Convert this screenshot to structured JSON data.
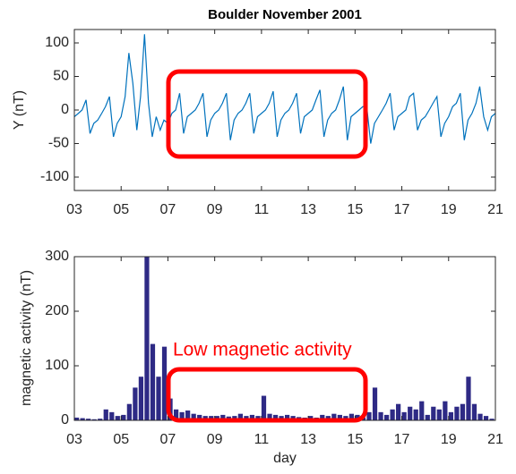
{
  "chart_data": [
    {
      "type": "line",
      "title": "Boulder    November 2001",
      "ylabel": "Y (nT)",
      "color": "#0072bd",
      "xlim": [
        3,
        21
      ],
      "ylim": [
        -120,
        120
      ],
      "xticks": [
        {
          "value": 3,
          "label": "03"
        },
        {
          "value": 5,
          "label": "05"
        },
        {
          "value": 7,
          "label": "07"
        },
        {
          "value": 9,
          "label": "09"
        },
        {
          "value": 11,
          "label": "11"
        },
        {
          "value": 13,
          "label": "13"
        },
        {
          "value": 15,
          "label": "15"
        },
        {
          "value": 17,
          "label": "17"
        },
        {
          "value": 19,
          "label": "19"
        },
        {
          "value": 21,
          "label": "21"
        }
      ],
      "yticks": [
        -100,
        -50,
        0,
        50,
        100
      ],
      "x": [
        3,
        3.17,
        3.33,
        3.5,
        3.67,
        3.83,
        4,
        4.17,
        4.33,
        4.5,
        4.67,
        4.83,
        5,
        5.17,
        5.33,
        5.5,
        5.67,
        5.83,
        6,
        6.17,
        6.33,
        6.5,
        6.67,
        6.83,
        7,
        7.17,
        7.33,
        7.5,
        7.67,
        7.83,
        8,
        8.17,
        8.33,
        8.5,
        8.67,
        8.83,
        9,
        9.17,
        9.33,
        9.5,
        9.67,
        9.83,
        10,
        10.17,
        10.33,
        10.5,
        10.67,
        10.83,
        11,
        11.17,
        11.33,
        11.5,
        11.67,
        11.83,
        12,
        12.17,
        12.33,
        12.5,
        12.67,
        12.83,
        13,
        13.17,
        13.33,
        13.5,
        13.67,
        13.83,
        14,
        14.17,
        14.33,
        14.5,
        14.67,
        14.83,
        15,
        15.17,
        15.33,
        15.5,
        15.67,
        15.83,
        16,
        16.17,
        16.33,
        16.5,
        16.67,
        16.83,
        17,
        17.17,
        17.33,
        17.5,
        17.67,
        17.83,
        18,
        18.17,
        18.33,
        18.5,
        18.67,
        18.83,
        19,
        19.17,
        19.33,
        19.5,
        19.67,
        19.83,
        20,
        20.17,
        20.33,
        20.5,
        20.67,
        20.83,
        21
      ],
      "values": [
        -10,
        -5,
        0,
        15,
        -35,
        -20,
        -15,
        -5,
        5,
        20,
        -40,
        -20,
        -10,
        20,
        85,
        40,
        -30,
        20,
        113,
        10,
        -40,
        -10,
        -30,
        -15,
        -20,
        -5,
        0,
        25,
        -35,
        -10,
        -5,
        0,
        10,
        25,
        -40,
        -15,
        -5,
        0,
        10,
        25,
        -45,
        -15,
        -5,
        0,
        10,
        25,
        -35,
        -10,
        -5,
        0,
        10,
        28,
        -40,
        -15,
        -5,
        0,
        10,
        25,
        -35,
        -10,
        -5,
        0,
        15,
        30,
        -40,
        -15,
        -5,
        0,
        15,
        35,
        -45,
        -10,
        -5,
        0,
        5,
        5,
        -50,
        -20,
        -10,
        0,
        10,
        25,
        -30,
        -10,
        -5,
        0,
        20,
        25,
        -30,
        -15,
        -10,
        0,
        10,
        20,
        -40,
        -20,
        -10,
        5,
        10,
        25,
        -45,
        -15,
        -5,
        10,
        35,
        -10,
        -30,
        -10,
        -5
      ]
    },
    {
      "type": "bar",
      "xlabel": "day",
      "ylabel": "magnetic activity (nT)",
      "color": "#2e2a85",
      "annotation": "Low magnetic activity",
      "xlim": [
        3,
        21
      ],
      "ylim": [
        0,
        300
      ],
      "xticks": [
        {
          "value": 3,
          "label": "03"
        },
        {
          "value": 5,
          "label": "05"
        },
        {
          "value": 7,
          "label": "07"
        },
        {
          "value": 9,
          "label": "09"
        },
        {
          "value": 11,
          "label": "11"
        },
        {
          "value": 13,
          "label": "13"
        },
        {
          "value": 15,
          "label": "15"
        },
        {
          "value": 17,
          "label": "17"
        },
        {
          "value": 19,
          "label": "19"
        },
        {
          "value": 21,
          "label": "21"
        }
      ],
      "yticks": [
        0,
        100,
        200,
        300
      ],
      "x": [
        3,
        3.25,
        3.5,
        3.75,
        4,
        4.25,
        4.5,
        4.75,
        5,
        5.25,
        5.5,
        5.75,
        6,
        6.25,
        6.5,
        6.75,
        7,
        7.25,
        7.5,
        7.75,
        8,
        8.25,
        8.5,
        8.75,
        9,
        9.25,
        9.5,
        9.75,
        10,
        10.25,
        10.5,
        10.75,
        11,
        11.25,
        11.5,
        11.75,
        12,
        12.25,
        12.5,
        12.75,
        13,
        13.25,
        13.5,
        13.75,
        14,
        14.25,
        14.5,
        14.75,
        15,
        15.25,
        15.5,
        15.75,
        16,
        16.25,
        16.5,
        16.75,
        17,
        17.25,
        17.5,
        17.75,
        18,
        18.25,
        18.5,
        18.75,
        19,
        19.25,
        19.5,
        19.75,
        20,
        20.25,
        20.5,
        20.75
      ],
      "values": [
        5,
        4,
        3,
        2,
        3,
        20,
        15,
        8,
        10,
        30,
        60,
        80,
        300,
        140,
        80,
        135,
        40,
        20,
        15,
        18,
        12,
        10,
        8,
        8,
        8,
        10,
        7,
        8,
        12,
        8,
        10,
        8,
        45,
        12,
        10,
        8,
        10,
        8,
        6,
        5,
        8,
        5,
        10,
        8,
        12,
        10,
        8,
        12,
        10,
        5,
        15,
        60,
        15,
        10,
        20,
        30,
        15,
        25,
        20,
        35,
        10,
        25,
        20,
        35,
        15,
        25,
        30,
        80,
        30,
        12,
        8,
        3
      ]
    }
  ]
}
